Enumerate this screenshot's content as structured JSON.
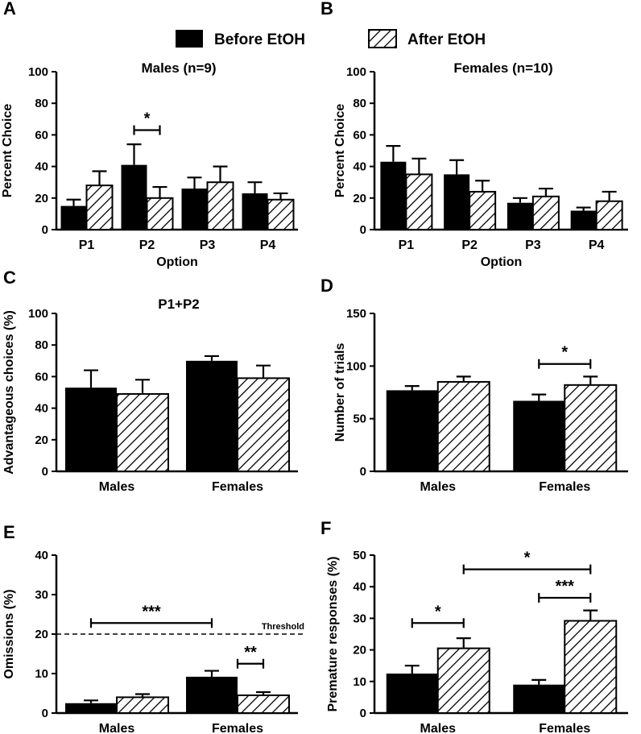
{
  "legend": {
    "before": "Before EtOH",
    "after": "After EtOH"
  },
  "colors": {
    "before": "#000000",
    "after_fill": "#ffffff",
    "hatch": "#000000",
    "axis": "#000000"
  },
  "chart_data": [
    {
      "id": "A",
      "panel_label": "A",
      "type": "bar",
      "title": "Males (n=9)",
      "xlabel": "Option",
      "ylabel": "Percent Choice",
      "categories": [
        "P1",
        "P2",
        "P3",
        "P4"
      ],
      "ylim": [
        0,
        100
      ],
      "yticks": [
        0,
        20,
        40,
        60,
        80,
        100
      ],
      "series": [
        {
          "name": "Before EtOH",
          "values": [
            15,
            41,
            26,
            23
          ],
          "errors": [
            4,
            13,
            7,
            7
          ]
        },
        {
          "name": "After EtOH",
          "values": [
            28,
            20,
            30,
            19
          ],
          "errors": [
            9,
            7,
            10,
            4
          ]
        }
      ],
      "annotations": [
        {
          "text": "*",
          "category": 1,
          "from": 0,
          "to": 1,
          "y": 63
        }
      ]
    },
    {
      "id": "B",
      "panel_label": "B",
      "type": "bar",
      "title": "Females (n=10)",
      "xlabel": "Option",
      "ylabel": "Percent Choice",
      "categories": [
        "P1",
        "P2",
        "P3",
        "P4"
      ],
      "ylim": [
        0,
        100
      ],
      "yticks": [
        0,
        20,
        40,
        60,
        80,
        100
      ],
      "series": [
        {
          "name": "Before EtOH",
          "values": [
            43,
            35,
            17,
            12
          ],
          "errors": [
            10,
            9,
            3,
            2
          ]
        },
        {
          "name": "After EtOH",
          "values": [
            35,
            24,
            21,
            18
          ],
          "errors": [
            10,
            7,
            5,
            6
          ]
        }
      ],
      "annotations": []
    },
    {
      "id": "C",
      "panel_label": "C",
      "type": "bar",
      "title": "P1+P2",
      "xlabel": "",
      "ylabel": "Advantageous choices (%)",
      "categories": [
        "Males",
        "Females"
      ],
      "ylim": [
        0,
        100
      ],
      "yticks": [
        0,
        20,
        40,
        60,
        80,
        100
      ],
      "series": [
        {
          "name": "Before EtOH",
          "values": [
            53,
            70
          ],
          "errors": [
            11,
            3
          ]
        },
        {
          "name": "After EtOH",
          "values": [
            49,
            59
          ],
          "errors": [
            9,
            8
          ]
        }
      ],
      "annotations": []
    },
    {
      "id": "D",
      "panel_label": "D",
      "type": "bar",
      "title": "",
      "xlabel": "",
      "ylabel": "Number of trials",
      "categories": [
        "Males",
        "Females"
      ],
      "ylim": [
        0,
        150
      ],
      "yticks": [
        0,
        50,
        100,
        150
      ],
      "series": [
        {
          "name": "Before EtOH",
          "values": [
            77,
            67
          ],
          "errors": [
            4,
            6
          ]
        },
        {
          "name": "After EtOH",
          "values": [
            85,
            82
          ],
          "errors": [
            5,
            8
          ]
        }
      ],
      "annotations": [
        {
          "text": "*",
          "category": 1,
          "from": 0,
          "to": 1,
          "y": 102
        }
      ]
    },
    {
      "id": "E",
      "panel_label": "E",
      "type": "bar",
      "title": "",
      "xlabel": "",
      "ylabel": "Omissions (%)",
      "categories": [
        "Males",
        "Females"
      ],
      "ylim": [
        0,
        40
      ],
      "yticks": [
        0,
        10,
        20,
        30,
        40
      ],
      "threshold": {
        "value": 20,
        "label": "Threshold"
      },
      "series": [
        {
          "name": "Before EtOH",
          "values": [
            2.5,
            9.2
          ],
          "errors": [
            0.7,
            1.5
          ]
        },
        {
          "name": "After EtOH",
          "values": [
            4.0,
            4.5
          ],
          "errors": [
            0.8,
            0.8
          ]
        }
      ],
      "annotations": [
        {
          "text": "***",
          "from_category": 0,
          "from": 0,
          "to_category": 1,
          "to": 0,
          "y": 22.8
        },
        {
          "text": "**",
          "category": 1,
          "from": 0.5,
          "to": 1,
          "y": 12.5
        }
      ]
    },
    {
      "id": "F",
      "panel_label": "F",
      "type": "bar",
      "title": "",
      "xlabel": "",
      "ylabel": "Premature responses (%)",
      "categories": [
        "Males",
        "Females"
      ],
      "ylim": [
        0,
        50
      ],
      "yticks": [
        0,
        10,
        20,
        30,
        40,
        50
      ],
      "series": [
        {
          "name": "Before EtOH",
          "values": [
            12.5,
            9
          ],
          "errors": [
            2.5,
            1.5
          ]
        },
        {
          "name": "After EtOH",
          "values": [
            20.5,
            29.2
          ],
          "errors": [
            3.2,
            3.3
          ]
        }
      ],
      "annotations": [
        {
          "text": "*",
          "category": 0,
          "from": 0,
          "to": 1,
          "y": 28.5
        },
        {
          "text": "***",
          "category": 1,
          "from": 0,
          "to": 1,
          "y": 36.5
        },
        {
          "text": "*",
          "from_category": 0,
          "from": 1,
          "to_category": 1,
          "to": 1,
          "y": 45.5
        }
      ]
    }
  ]
}
